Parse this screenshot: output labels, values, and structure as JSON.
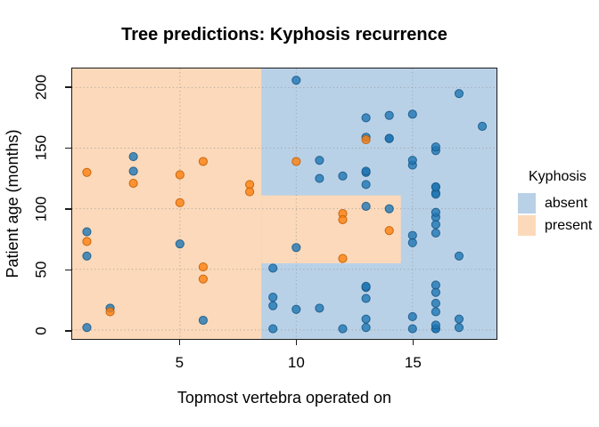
{
  "chart_data": {
    "type": "scatter",
    "title": "Tree predictions: Kyphosis recurrence",
    "xlabel": "Topmost vertebra operated on",
    "ylabel": "Patient age (months)",
    "xlim": [
      0.37,
      18.61
    ],
    "ylim": [
      -7.4,
      215.7
    ],
    "xticks": [
      5,
      10,
      15
    ],
    "yticks": [
      0,
      50,
      100,
      150,
      200
    ],
    "grid": true,
    "gridline_color": "#8f8f8f",
    "spine_color": "#1b1b1b",
    "background": "#ffffff",
    "legend": {
      "title": "Kyphosis",
      "position": "right-center",
      "entries": [
        {
          "label": "absent",
          "swatch": "#b9d1e7"
        },
        {
          "label": "present",
          "swatch": "#fbd9ba"
        }
      ]
    },
    "regions": {
      "absent_color": "#b9d1e7",
      "present_color": "#fbd9ba",
      "present_rects": [
        {
          "x0": 0.37,
          "x1": 8.5,
          "y0": -7.4,
          "y1": 215.7
        },
        {
          "x0": 8.5,
          "x1": 14.5,
          "y0": 55,
          "y1": 111
        }
      ]
    },
    "series": [
      {
        "name": "absent",
        "color": "#1f77b4",
        "edge": "#1a5a8a",
        "points": [
          [
            5,
            71
          ],
          [
            14,
            158
          ],
          [
            1,
            2
          ],
          [
            15,
            1
          ],
          [
            16,
            1
          ],
          [
            17,
            61
          ],
          [
            16,
            37
          ],
          [
            16,
            113
          ],
          [
            16,
            148
          ],
          [
            2,
            18
          ],
          [
            12,
            1
          ],
          [
            18,
            168
          ],
          [
            16,
            1
          ],
          [
            15,
            78
          ],
          [
            13,
            175
          ],
          [
            16,
            80
          ],
          [
            9,
            27
          ],
          [
            16,
            22
          ],
          [
            3,
            131
          ],
          [
            13,
            9
          ],
          [
            6,
            8
          ],
          [
            14,
            100
          ],
          [
            16,
            4
          ],
          [
            16,
            151
          ],
          [
            16,
            31
          ],
          [
            11,
            125
          ],
          [
            13,
            130
          ],
          [
            16,
            112
          ],
          [
            11,
            140
          ],
          [
            16,
            93
          ],
          [
            9,
            1
          ],
          [
            9,
            20
          ],
          [
            13,
            35
          ],
          [
            3,
            143
          ],
          [
            1,
            61
          ],
          [
            16,
            97
          ],
          [
            15,
            136
          ],
          [
            13,
            131
          ],
          [
            14,
            177
          ],
          [
            10,
            68
          ],
          [
            17,
            9
          ],
          [
            17,
            2
          ],
          [
            15,
            140
          ],
          [
            15,
            72
          ],
          [
            13,
            2
          ],
          [
            9,
            51
          ],
          [
            13,
            102
          ],
          [
            1,
            81
          ],
          [
            16,
            118
          ],
          [
            16,
            118
          ],
          [
            10,
            17
          ],
          [
            17,
            195
          ],
          [
            13,
            159
          ],
          [
            11,
            18
          ],
          [
            16,
            15
          ],
          [
            14,
            158
          ],
          [
            12,
            127
          ],
          [
            16,
            87
          ],
          [
            10,
            206
          ],
          [
            15,
            11
          ],
          [
            15,
            178
          ],
          [
            13,
            26
          ],
          [
            13,
            120
          ],
          [
            13,
            36
          ]
        ]
      },
      {
        "name": "present",
        "color": "#ff7f0e",
        "edge": "#c05f08",
        "points": [
          [
            5,
            128
          ],
          [
            12,
            59
          ],
          [
            14,
            82
          ],
          [
            5,
            105
          ],
          [
            12,
            96
          ],
          [
            2,
            15
          ],
          [
            6,
            52
          ],
          [
            12,
            91
          ],
          [
            1,
            73
          ],
          [
            10,
            139
          ],
          [
            3,
            121
          ],
          [
            6,
            139
          ],
          [
            8,
            120
          ],
          [
            1,
            130
          ],
          [
            8,
            114
          ],
          [
            13,
            157
          ],
          [
            6,
            42
          ]
        ]
      }
    ]
  }
}
